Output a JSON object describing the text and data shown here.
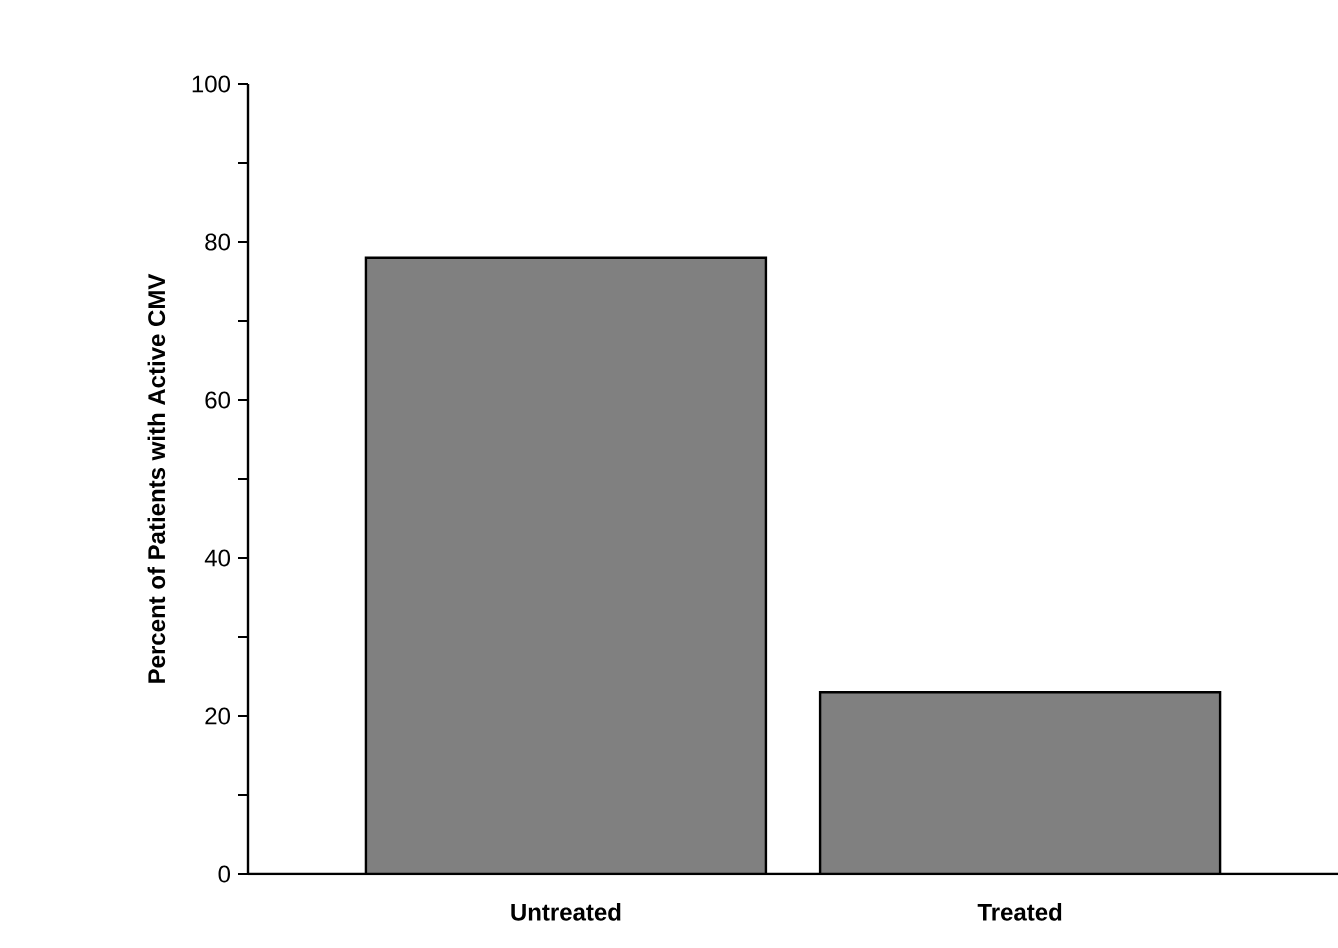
{
  "chart_data": {
    "type": "bar",
    "ylabel": "Percent of Patients with Active CMV",
    "categories": [
      "Untreated",
      "Treated"
    ],
    "values": [
      78,
      23
    ],
    "color": "#808080",
    "ylim": [
      0,
      100
    ],
    "yticks": [
      0,
      {
        "value": 10,
        "label": null
      },
      20,
      {
        "value": 30,
        "label": null
      },
      40,
      {
        "value": 50,
        "label": null
      },
      60,
      {
        "value": 70,
        "label": null
      },
      80,
      {
        "value": 90,
        "label": null
      },
      100
    ]
  }
}
